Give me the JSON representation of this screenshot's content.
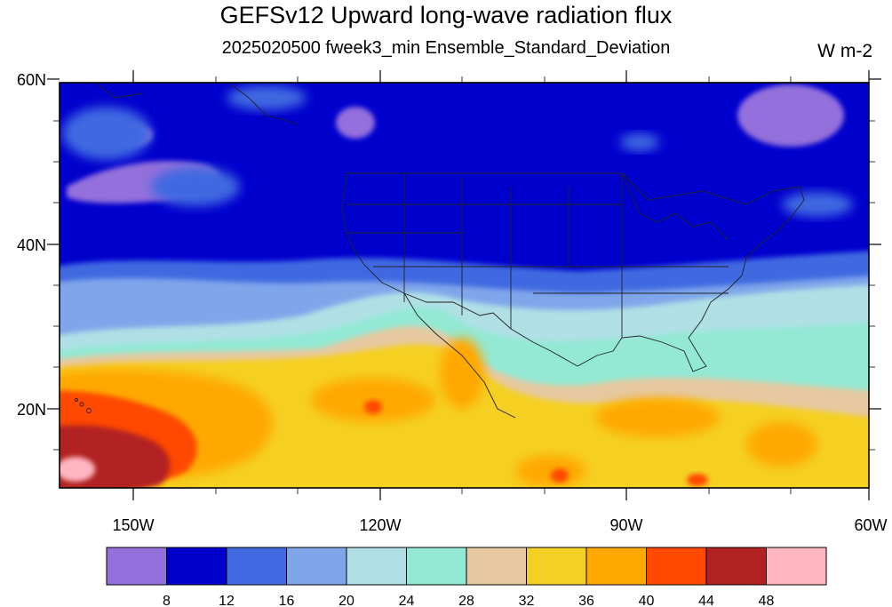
{
  "title": "GEFSv12 Upward long-wave radiation flux",
  "subtitle": "2025020500 fweek3_min Ensemble_Standard_Deviation",
  "units": "W m-2",
  "lat_ticks": [
    "60N",
    "40N",
    "20N"
  ],
  "lon_ticks": [
    "150W",
    "120W",
    "90W",
    "60W"
  ],
  "colorbar": {
    "boundaries": [
      "8",
      "12",
      "16",
      "20",
      "24",
      "28",
      "32",
      "36",
      "40",
      "44",
      "48"
    ],
    "colors": [
      "#9370db",
      "#0000cd",
      "#4169e1",
      "#7fa6ea",
      "#b0e0e6",
      "#93e9d4",
      "#e6c9a0",
      "#f5d024",
      "#ffa800",
      "#ff4a00",
      "#b22222",
      "#ffb6c1"
    ]
  }
}
